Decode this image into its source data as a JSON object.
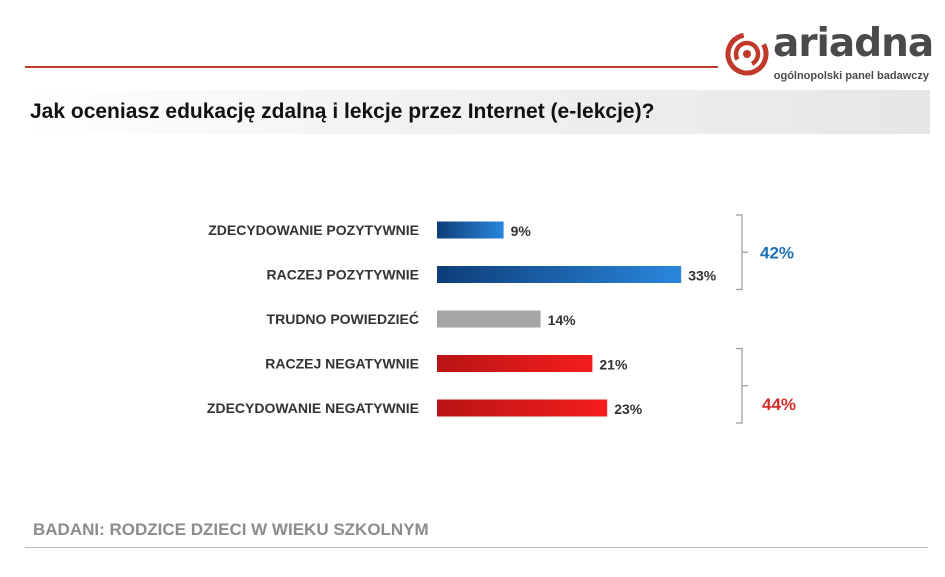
{
  "header": {
    "brand": "ariadna",
    "tagline": "ogólnopolski panel badawczy",
    "brand_color": "#c0392b"
  },
  "title": "Jak oceniasz edukację zdalną i lekcje przez Internet (e-lekcje)?",
  "footer": "BADANI: RODZICE DZIECI W WIEKU SZKOLNYM",
  "chart_data": {
    "type": "bar",
    "orientation": "horizontal",
    "title": "Jak oceniasz edukację zdalną i lekcje przez Internet (e-lekcje)?",
    "categories": [
      "ZDECYDOWANIE  POZYTYWNIE",
      "RACZEJ POZYTYWNIE",
      "TRUDNO  POWIEDZIEĆ",
      "RACZEJ NEGATYWNIE",
      "ZDECYDOWANIE  NEGATYWNIE"
    ],
    "values": [
      9,
      33,
      14,
      21,
      23
    ],
    "value_labels": [
      "9%",
      "33%",
      "14%",
      "21%",
      "23%"
    ],
    "bar_colors": [
      "blue",
      "blue",
      "gray",
      "red",
      "red"
    ],
    "xlim": [
      0,
      100
    ],
    "unit": "%",
    "grid": false,
    "groups": [
      {
        "label": "42%",
        "from": 0,
        "to": 1,
        "color": "#1f6fb5"
      },
      {
        "label": "44%",
        "from": 3,
        "to": 4,
        "color": "#d42a2a"
      }
    ]
  }
}
